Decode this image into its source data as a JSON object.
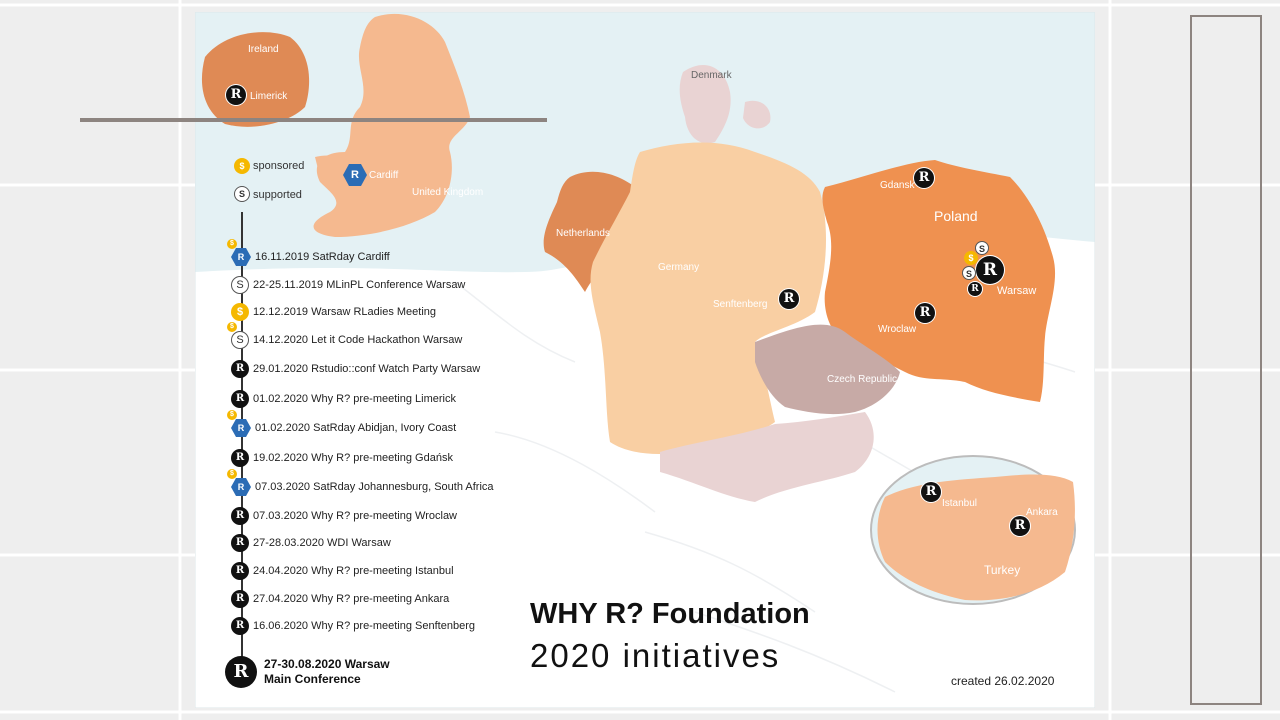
{
  "title": {
    "line1": "WHY R? Foundation",
    "line2": "2020 initiatives"
  },
  "created": "created 26.02.2020",
  "legend": {
    "sponsored": "sponsored",
    "supported": "supported",
    "coin_symbol": "$",
    "supported_symbol": "S"
  },
  "countries": {
    "ireland": "Ireland",
    "uk": "United Kingdom",
    "denmark": "Denmark",
    "netherlands": "Netherlands",
    "germany": "Germany",
    "poland": "Poland",
    "czech": "Czech Republic",
    "turkey": "Turkey"
  },
  "cities": {
    "limerick": "Limerick",
    "cardiff": "Cardiff",
    "gdansk": "Gdansk",
    "warsaw": "Warsaw",
    "wroclaw": "Wroclaw",
    "senftenberg": "Senftenberg",
    "istanbul": "Istanbul",
    "ankara": "Ankara"
  },
  "timeline": [
    {
      "text": "16.11.2019 SatRday Cardiff",
      "icon": "satrday-hex-icon",
      "sponsored": true
    },
    {
      "text": "22-25.11.2019 MLinPL Conference Warsaw",
      "icon": "supported-icon",
      "sponsored": false
    },
    {
      "text": "12.12.2019 Warsaw RLadies Meeting",
      "icon": "sponsored-icon",
      "sponsored": false
    },
    {
      "text": "14.12.2020 Let it Code Hackathon Warsaw",
      "icon": "supported-icon",
      "sponsored": true
    },
    {
      "text": "29.01.2020 Rstudio::conf Watch Party Warsaw",
      "icon": "why-r-logo-icon",
      "sponsored": false
    },
    {
      "text": "01.02.2020 Why R? pre-meeting Limerick",
      "icon": "why-r-logo-icon",
      "sponsored": false
    },
    {
      "text": "01.02.2020 SatRday Abidjan, Ivory Coast",
      "icon": "satrday-hex-icon",
      "sponsored": true
    },
    {
      "text": "19.02.2020 Why R? pre-meeting Gdańsk",
      "icon": "why-r-logo-icon",
      "sponsored": false
    },
    {
      "text": "07.03.2020 SatRday Johannesburg, South Africa",
      "icon": "satrday-hex-icon",
      "sponsored": true
    },
    {
      "text": "07.03.2020 Why R? pre-meeting Wroclaw",
      "icon": "why-r-logo-icon",
      "sponsored": false
    },
    {
      "text": "27-28.03.2020 WDI Warsaw",
      "icon": "why-r-logo-icon",
      "sponsored": false
    },
    {
      "text": "24.04.2020 Why R? pre-meeting Istanbul",
      "icon": "why-r-logo-icon",
      "sponsored": false
    },
    {
      "text": "27.04.2020 Why R? pre-meeting Ankara",
      "icon": "why-r-logo-icon",
      "sponsored": false
    },
    {
      "text": "16.06.2020 Why R? pre-meeting Senftenberg",
      "icon": "why-r-logo-icon",
      "sponsored": false
    }
  ],
  "main_conference": {
    "line1": "27-30.08.2020 Warsaw",
    "line2": "Main Conference"
  },
  "logo_glyph": "R",
  "colors": {
    "sea": "#e4f1f4",
    "land_light": "#f5b98f",
    "germany": "#f9cfa3",
    "poland": "#ef9150",
    "ireland": "#df8a55",
    "neighbor_pink": "#e9d3d3",
    "czech": "#c7aaa6",
    "hex_blue": "#2b6cb5",
    "gold": "#f5b800"
  }
}
